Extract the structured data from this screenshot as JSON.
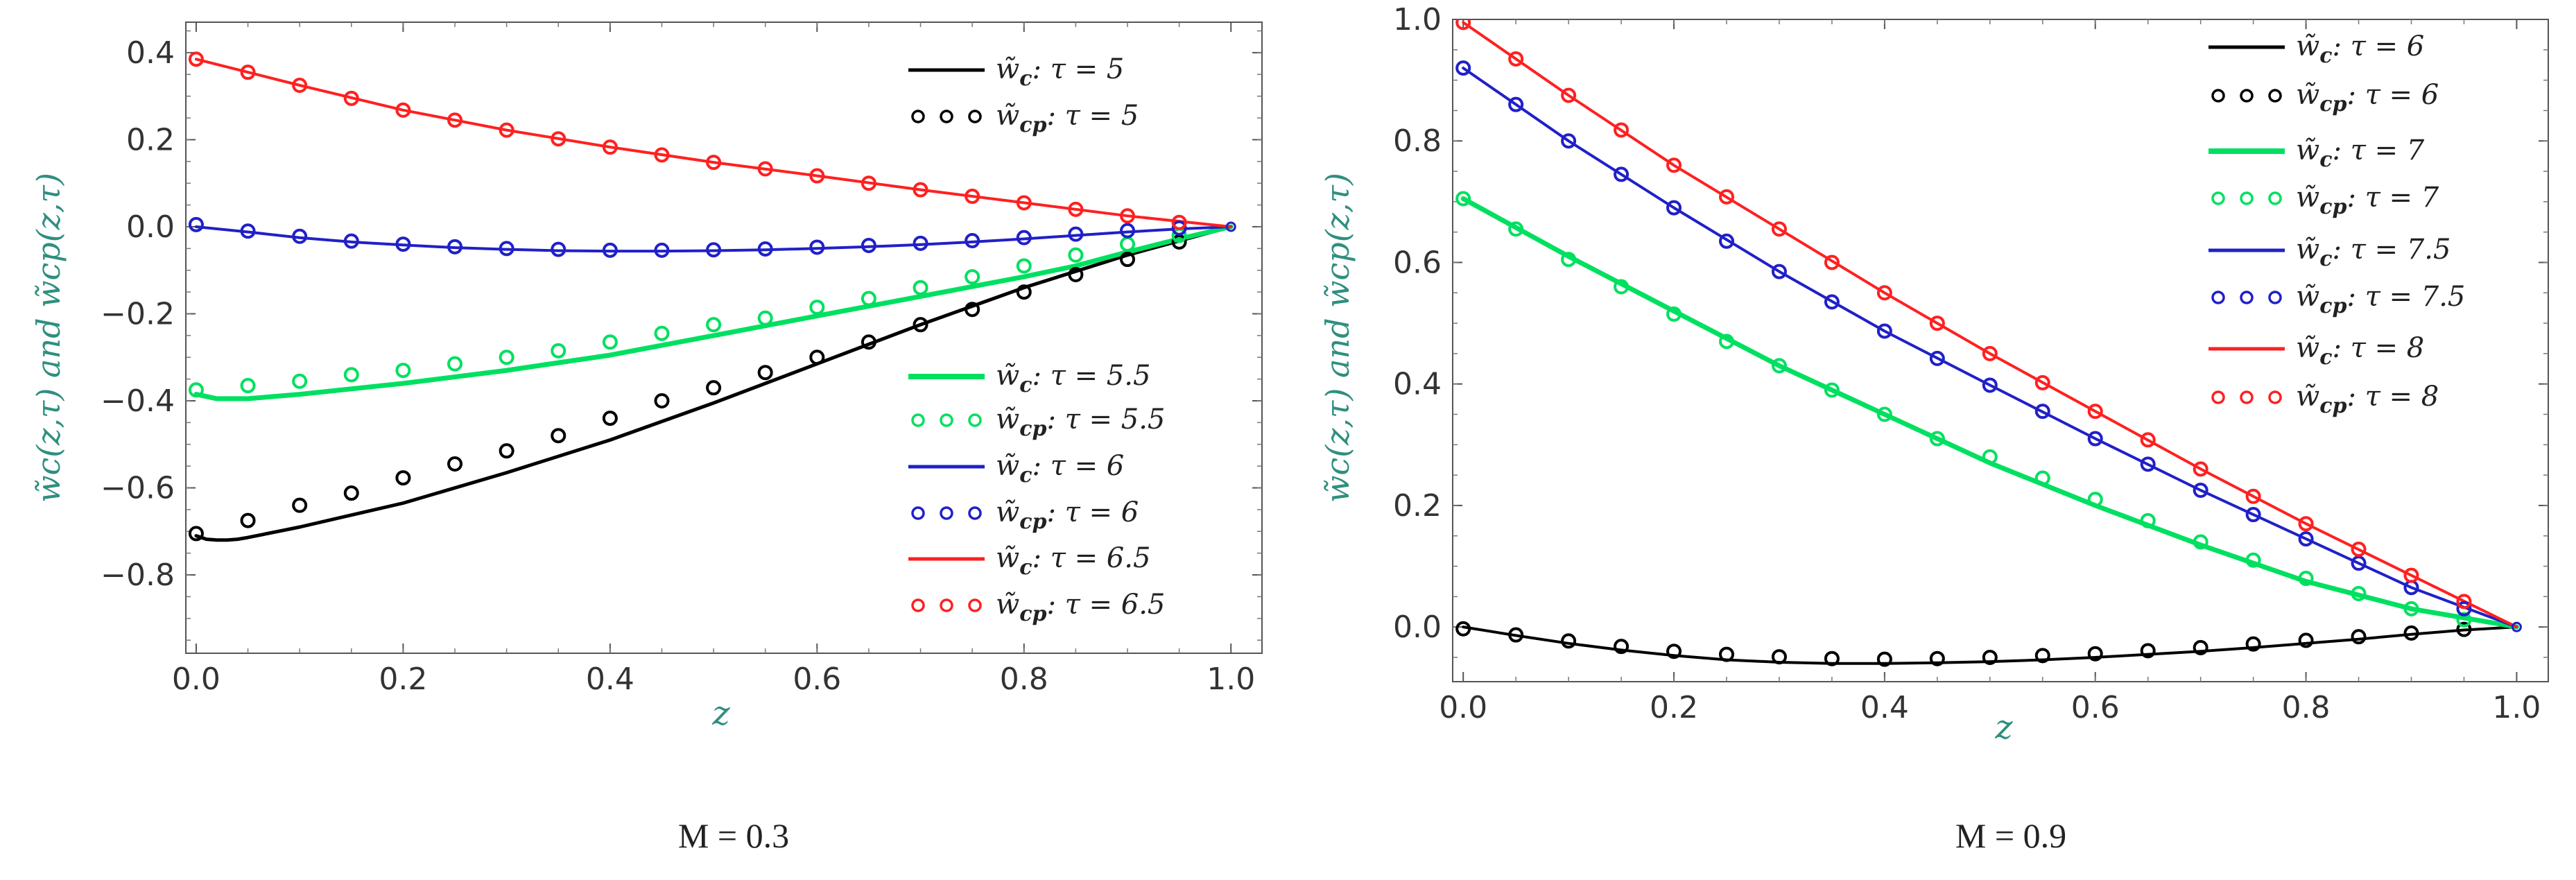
{
  "figure": {
    "captions": [
      "M = 0.3",
      "M = 0.9"
    ]
  },
  "chart_data": [
    {
      "type": "line",
      "caption": "M = 0.3",
      "xlabel": "z",
      "ylabel": "w̃c(z,τ) and w̃cp(z,τ)",
      "xlim": [
        -0.01,
        1.03
      ],
      "ylim": [
        -0.98,
        0.47
      ],
      "xticks": [
        0.0,
        0.2,
        0.4,
        0.6,
        0.8,
        1.0
      ],
      "xtick_labels": [
        "0.0",
        "0.2",
        "0.4",
        "0.6",
        "0.8",
        "1.0"
      ],
      "yticks": [
        0.4,
        0.2,
        0.0,
        -0.2,
        -0.4,
        -0.6,
        -0.8
      ],
      "ytick_labels": [
        "0.4",
        "0.2",
        "0.0",
        "−0.2",
        "−0.4",
        "−0.6",
        "−0.8"
      ],
      "legend": [
        {
          "name": "w̃c: τ = 5",
          "color": "#000000",
          "style": "line"
        },
        {
          "name": "w̃cp: τ = 5",
          "color": "#000000",
          "style": "markers"
        },
        {
          "name": "w̃c: τ = 5.5",
          "color": "#00e060",
          "style": "line"
        },
        {
          "name": "w̃cp: τ = 5.5",
          "color": "#00e060",
          "style": "markers"
        },
        {
          "name": "w̃c: τ = 6",
          "color": "#2020c8",
          "style": "line"
        },
        {
          "name": "w̃cp: τ = 6",
          "color": "#2020c8",
          "style": "markers"
        },
        {
          "name": "w̃c: τ = 6.5",
          "color": "#ff2020",
          "style": "line"
        },
        {
          "name": "w̃cp: τ = 6.5",
          "color": "#ff2020",
          "style": "markers"
        }
      ],
      "series": [
        {
          "name": "τ = 5",
          "color": "#000000",
          "line_width": 5,
          "line": {
            "x": [
              0.0,
              0.01,
              0.02,
              0.03,
              0.04,
              0.05,
              0.1,
              0.2,
              0.3,
              0.4,
              0.5,
              0.6,
              0.7,
              0.8,
              0.9,
              1.0
            ],
            "y": [
              -0.71,
              -0.718,
              -0.72,
              -0.72,
              -0.718,
              -0.714,
              -0.69,
              -0.635,
              -0.565,
              -0.49,
              -0.405,
              -0.315,
              -0.225,
              -0.14,
              -0.065,
              0.0
            ]
          },
          "markers": {
            "x": [
              0.0,
              0.05,
              0.1,
              0.15,
              0.2,
              0.25,
              0.3,
              0.35,
              0.4,
              0.45,
              0.5,
              0.55,
              0.6,
              0.65,
              0.7,
              0.75,
              0.8,
              0.85,
              0.9,
              0.95
            ],
            "y": [
              -0.705,
              -0.675,
              -0.64,
              -0.612,
              -0.577,
              -0.545,
              -0.515,
              -0.48,
              -0.44,
              -0.4,
              -0.37,
              -0.335,
              -0.3,
              -0.265,
              -0.225,
              -0.19,
              -0.15,
              -0.11,
              -0.075,
              -0.035
            ]
          }
        },
        {
          "name": "τ = 5.5",
          "color": "#00e060",
          "line_width": 7,
          "line": {
            "x": [
              0.0,
              0.02,
              0.05,
              0.1,
              0.2,
              0.3,
              0.4,
              0.5,
              0.6,
              0.7,
              0.8,
              0.85,
              0.9,
              0.95,
              1.0
            ],
            "y": [
              -0.385,
              -0.395,
              -0.395,
              -0.385,
              -0.36,
              -0.33,
              -0.295,
              -0.25,
              -0.205,
              -0.16,
              -0.115,
              -0.09,
              -0.058,
              -0.028,
              0.0
            ]
          },
          "markers": {
            "x": [
              0.0,
              0.05,
              0.1,
              0.15,
              0.2,
              0.25,
              0.3,
              0.35,
              0.4,
              0.45,
              0.5,
              0.55,
              0.6,
              0.65,
              0.7,
              0.75,
              0.8,
              0.85,
              0.9,
              0.95
            ],
            "y": [
              -0.375,
              -0.365,
              -0.355,
              -0.34,
              -0.33,
              -0.315,
              -0.3,
              -0.285,
              -0.265,
              -0.245,
              -0.225,
              -0.21,
              -0.185,
              -0.165,
              -0.14,
              -0.115,
              -0.09,
              -0.065,
              -0.04,
              -0.02
            ]
          }
        },
        {
          "name": "τ = 6",
          "color": "#2020c8",
          "line_width": 4,
          "line": {
            "x": [
              0.0,
              0.05,
              0.1,
              0.15,
              0.2,
              0.25,
              0.3,
              0.35,
              0.4,
              0.45,
              0.5,
              0.55,
              0.6,
              0.65,
              0.7,
              0.75,
              0.8,
              0.85,
              0.9,
              0.95,
              1.0
            ],
            "y": [
              0.0,
              -0.012,
              -0.025,
              -0.035,
              -0.042,
              -0.048,
              -0.052,
              -0.055,
              -0.056,
              -0.056,
              -0.055,
              -0.053,
              -0.05,
              -0.046,
              -0.041,
              -0.035,
              -0.028,
              -0.02,
              -0.012,
              -0.005,
              0.0
            ]
          },
          "markers": {
            "x": [
              0.0,
              0.05,
              0.1,
              0.15,
              0.2,
              0.25,
              0.3,
              0.35,
              0.4,
              0.45,
              0.5,
              0.55,
              0.6,
              0.65,
              0.7,
              0.75,
              0.8,
              0.85,
              0.9,
              0.95
            ],
            "y": [
              0.005,
              -0.01,
              -0.022,
              -0.033,
              -0.04,
              -0.046,
              -0.05,
              -0.052,
              -0.054,
              -0.054,
              -0.053,
              -0.051,
              -0.047,
              -0.043,
              -0.038,
              -0.032,
              -0.025,
              -0.017,
              -0.009,
              -0.003
            ]
          }
        },
        {
          "name": "τ = 6.5",
          "color": "#ff2020",
          "line_width": 4,
          "line": {
            "x": [
              0.0,
              0.1,
              0.2,
              0.3,
              0.4,
              0.5,
              0.6,
              0.7,
              0.8,
              0.9,
              1.0
            ],
            "y": [
              0.385,
              0.325,
              0.268,
              0.222,
              0.183,
              0.148,
              0.117,
              0.085,
              0.055,
              0.025,
              0.0
            ]
          },
          "markers": {
            "x": [
              0.0,
              0.05,
              0.1,
              0.15,
              0.2,
              0.25,
              0.3,
              0.35,
              0.4,
              0.45,
              0.5,
              0.55,
              0.6,
              0.65,
              0.7,
              0.75,
              0.8,
              0.85,
              0.9,
              0.95
            ],
            "y": [
              0.385,
              0.355,
              0.325,
              0.295,
              0.268,
              0.245,
              0.222,
              0.202,
              0.183,
              0.165,
              0.148,
              0.133,
              0.117,
              0.1,
              0.085,
              0.07,
              0.055,
              0.04,
              0.025,
              0.01
            ]
          }
        }
      ]
    },
    {
      "type": "line",
      "caption": "M = 0.9",
      "xlabel": "z",
      "ylabel": "w̃c(z,τ) and w̃cp(z,τ)",
      "xlim": [
        -0.01,
        1.03
      ],
      "ylim": [
        -0.09,
        1.0
      ],
      "xticks": [
        0.0,
        0.2,
        0.4,
        0.6,
        0.8,
        1.0
      ],
      "xtick_labels": [
        "0.0",
        "0.2",
        "0.4",
        "0.6",
        "0.8",
        "1.0"
      ],
      "yticks": [
        1.0,
        0.8,
        0.6,
        0.4,
        0.2,
        0.0
      ],
      "ytick_labels": [
        "1.0",
        "0.8",
        "0.6",
        "0.4",
        "0.2",
        "0.0"
      ],
      "legend": [
        {
          "name": "w̃c: τ = 6",
          "color": "#000000",
          "style": "line"
        },
        {
          "name": "w̃cp: τ = 6",
          "color": "#000000",
          "style": "markers"
        },
        {
          "name": "w̃c: τ = 7",
          "color": "#00e060",
          "style": "line"
        },
        {
          "name": "w̃cp: τ = 7",
          "color": "#00e060",
          "style": "markers"
        },
        {
          "name": "w̃c: τ = 7.5",
          "color": "#2020c8",
          "style": "line"
        },
        {
          "name": "w̃cp: τ = 7.5",
          "color": "#2020c8",
          "style": "markers"
        },
        {
          "name": "w̃c: τ = 8",
          "color": "#ff2020",
          "style": "line"
        },
        {
          "name": "w̃cp: τ = 8",
          "color": "#ff2020",
          "style": "markers"
        }
      ],
      "series": [
        {
          "name": "τ = 6",
          "color": "#000000",
          "line_width": 4,
          "line": {
            "x": [
              0.0,
              0.05,
              0.1,
              0.15,
              0.2,
              0.25,
              0.3,
              0.35,
              0.4,
              0.45,
              0.5,
              0.55,
              0.6,
              0.65,
              0.7,
              0.75,
              0.8,
              0.85,
              0.9,
              0.95,
              1.0
            ],
            "y": [
              0.0,
              -0.014,
              -0.027,
              -0.038,
              -0.047,
              -0.054,
              -0.058,
              -0.06,
              -0.06,
              -0.059,
              -0.057,
              -0.054,
              -0.05,
              -0.045,
              -0.04,
              -0.034,
              -0.027,
              -0.02,
              -0.012,
              -0.005,
              0.0
            ]
          },
          "markers": {
            "x": [
              0.0,
              0.05,
              0.1,
              0.15,
              0.2,
              0.25,
              0.3,
              0.35,
              0.4,
              0.45,
              0.5,
              0.55,
              0.6,
              0.65,
              0.7,
              0.75,
              0.8,
              0.85,
              0.9,
              0.95
            ],
            "y": [
              -0.003,
              -0.013,
              -0.023,
              -0.032,
              -0.04,
              -0.045,
              -0.049,
              -0.052,
              -0.053,
              -0.052,
              -0.05,
              -0.047,
              -0.044,
              -0.039,
              -0.034,
              -0.028,
              -0.022,
              -0.016,
              -0.01,
              -0.004
            ]
          }
        },
        {
          "name": "τ = 7",
          "color": "#00e060",
          "line_width": 7,
          "line": {
            "x": [
              0.0,
              0.1,
              0.2,
              0.3,
              0.4,
              0.5,
              0.6,
              0.7,
              0.8,
              0.9,
              1.0
            ],
            "y": [
              0.705,
              0.61,
              0.52,
              0.43,
              0.35,
              0.27,
              0.2,
              0.135,
              0.075,
              0.03,
              0.0
            ]
          },
          "markers": {
            "x": [
              0.0,
              0.05,
              0.1,
              0.15,
              0.2,
              0.25,
              0.3,
              0.35,
              0.4,
              0.45,
              0.5,
              0.55,
              0.6,
              0.65,
              0.7,
              0.75,
              0.8,
              0.85,
              0.9,
              0.95
            ],
            "y": [
              0.705,
              0.655,
              0.605,
              0.56,
              0.515,
              0.47,
              0.43,
              0.39,
              0.35,
              0.31,
              0.28,
              0.245,
              0.21,
              0.175,
              0.14,
              0.11,
              0.08,
              0.055,
              0.03,
              0.012
            ]
          }
        },
        {
          "name": "τ = 7.5",
          "color": "#2020c8",
          "line_width": 4,
          "line": {
            "x": [
              0.0,
              0.1,
              0.2,
              0.3,
              0.4,
              0.5,
              0.6,
              0.7,
              0.8,
              0.9,
              1.0
            ],
            "y": [
              0.92,
              0.8,
              0.69,
              0.585,
              0.487,
              0.398,
              0.31,
              0.225,
              0.145,
              0.065,
              0.0
            ]
          },
          "markers": {
            "x": [
              0.0,
              0.05,
              0.1,
              0.15,
              0.2,
              0.25,
              0.3,
              0.35,
              0.4,
              0.45,
              0.5,
              0.55,
              0.6,
              0.65,
              0.7,
              0.75,
              0.8,
              0.85,
              0.9,
              0.95
            ],
            "y": [
              0.92,
              0.86,
              0.8,
              0.745,
              0.69,
              0.635,
              0.585,
              0.535,
              0.487,
              0.442,
              0.398,
              0.355,
              0.31,
              0.268,
              0.225,
              0.185,
              0.145,
              0.105,
              0.065,
              0.03
            ]
          }
        },
        {
          "name": "τ = 8",
          "color": "#ff2020",
          "line_width": 4,
          "line": {
            "x": [
              0.0,
              0.1,
              0.2,
              0.3,
              0.4,
              0.5,
              0.6,
              0.7,
              0.8,
              0.9,
              1.0
            ],
            "y": [
              0.995,
              0.875,
              0.76,
              0.655,
              0.55,
              0.45,
              0.355,
              0.26,
              0.17,
              0.085,
              0.0
            ]
          },
          "markers": {
            "x": [
              0.0,
              0.05,
              0.1,
              0.15,
              0.2,
              0.25,
              0.3,
              0.35,
              0.4,
              0.45,
              0.5,
              0.55,
              0.6,
              0.65,
              0.7,
              0.75,
              0.8,
              0.85,
              0.9,
              0.95
            ],
            "y": [
              0.995,
              0.935,
              0.875,
              0.818,
              0.76,
              0.708,
              0.655,
              0.6,
              0.55,
              0.5,
              0.45,
              0.402,
              0.355,
              0.308,
              0.26,
              0.215,
              0.17,
              0.128,
              0.085,
              0.042
            ]
          }
        }
      ]
    }
  ]
}
